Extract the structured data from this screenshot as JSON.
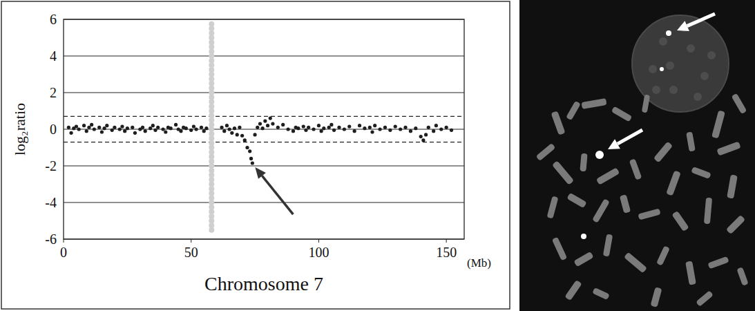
{
  "chart_data": {
    "type": "scatter",
    "xlabel": "Chromosome 7",
    "xlabel_unit": "(Mb)",
    "ylabel": "log₂ratio",
    "xlim": [
      0,
      157
    ],
    "xticks": [
      0,
      50,
      100,
      150
    ],
    "ylim": [
      -6,
      6
    ],
    "yticks": [
      -6,
      -4,
      -2,
      0,
      2,
      4,
      6
    ],
    "grid": true,
    "threshold_lines": [
      0.7,
      -0.7
    ],
    "series": [
      {
        "color": "#1e1e1e",
        "marker": "circle",
        "x": [
          2,
          3,
          4,
          5,
          6,
          8,
          9,
          10,
          11,
          12,
          14,
          15,
          16,
          17,
          19,
          20,
          22,
          23,
          24,
          25,
          27,
          28,
          30,
          31,
          32,
          34,
          35,
          36,
          37,
          39,
          40,
          41,
          42,
          44,
          45,
          46,
          47,
          48,
          50,
          51,
          52,
          54,
          55,
          56,
          62,
          63,
          64,
          65,
          66,
          67,
          68,
          69,
          70,
          71,
          72,
          73,
          73.5,
          74,
          75,
          76,
          77,
          78,
          79,
          80,
          81,
          82,
          84,
          86,
          88,
          90,
          91,
          92,
          94,
          95,
          96,
          98,
          100,
          101,
          102,
          104,
          105,
          106,
          108,
          110,
          112,
          114,
          116,
          118,
          120,
          121,
          122,
          124,
          126,
          128,
          130,
          132,
          134,
          136,
          138,
          140,
          141,
          142,
          143,
          145,
          146,
          148,
          150,
          152
        ],
        "values": [
          0.1,
          -0.2,
          0.05,
          0.15,
          0.0,
          0.2,
          -0.1,
          0.1,
          0.25,
          0.0,
          0.1,
          -0.15,
          0.05,
          0.2,
          -0.05,
          0.1,
          0.0,
          0.15,
          -0.1,
          0.05,
          0.1,
          -0.2,
          0.0,
          0.1,
          -0.1,
          0.05,
          0.2,
          -0.05,
          0.1,
          0.0,
          -0.15,
          0.1,
          0.05,
          0.25,
          0.0,
          -0.1,
          0.1,
          0.05,
          -0.05,
          0.15,
          0.0,
          0.1,
          -0.1,
          0.05,
          0.1,
          -0.1,
          0.2,
          0.0,
          -0.2,
          0.05,
          -0.3,
          0.1,
          -0.35,
          -0.6,
          -1.0,
          -1.2,
          -1.6,
          -1.85,
          -0.3,
          0.1,
          0.3,
          0.05,
          0.45,
          0.2,
          0.6,
          0.3,
          0.1,
          0.25,
          0.0,
          -0.1,
          0.1,
          0.05,
          0.15,
          -0.05,
          0.1,
          0.0,
          0.2,
          -0.1,
          0.05,
          0.1,
          0.25,
          -0.05,
          0.1,
          0.0,
          0.15,
          -0.1,
          0.2,
          0.05,
          0.1,
          -0.15,
          0.2,
          0.0,
          0.1,
          -0.05,
          0.15,
          0.0,
          0.1,
          -0.1,
          0.05,
          -0.4,
          -0.6,
          -0.3,
          0.1,
          -0.1,
          0.2,
          0.0,
          0.1,
          -0.05
        ]
      },
      {
        "color": "#cfcfcf",
        "marker": "circle",
        "x": [
          58,
          58,
          58,
          58,
          58,
          58,
          58,
          58,
          58,
          58,
          58,
          58,
          58,
          58,
          58,
          58,
          58,
          58,
          58,
          58,
          58,
          58,
          58,
          58,
          58,
          58,
          58,
          58,
          58,
          58,
          58,
          58,
          58,
          58,
          58,
          58,
          58,
          58,
          58,
          58,
          58,
          58,
          58,
          58,
          58,
          58
        ],
        "values": [
          -5.5,
          -5.25,
          -5,
          -4.75,
          -4.5,
          -4.25,
          -4,
          -3.75,
          -3.5,
          -3.25,
          -3,
          -2.75,
          -2.5,
          -2.25,
          -2,
          -1.75,
          -1.5,
          -1.25,
          -1,
          -0.75,
          -0.5,
          -0.25,
          0,
          0.25,
          0.5,
          0.75,
          1,
          1.25,
          1.5,
          1.75,
          2,
          2.25,
          2.5,
          2.75,
          3,
          3.25,
          3.5,
          3.75,
          4,
          4.25,
          4.5,
          4.75,
          5,
          5.25,
          5.5,
          5.75
        ]
      }
    ]
  }
}
